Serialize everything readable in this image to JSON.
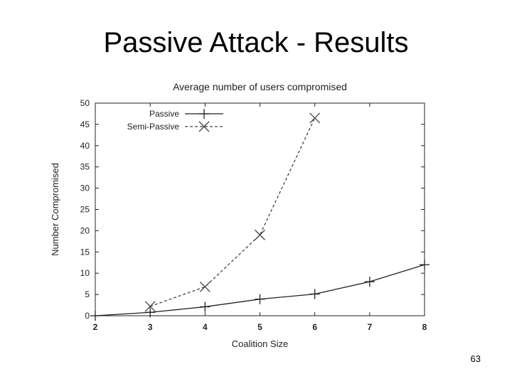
{
  "slide": {
    "title": "Passive Attack - Results",
    "page_number": "63"
  },
  "chart_data": {
    "type": "line",
    "title": "Average number of users compromised",
    "xlabel": "Coalition Size",
    "ylabel": "Number Compromised",
    "xlim": [
      2,
      8
    ],
    "ylim": [
      0,
      50
    ],
    "xticks": [
      2,
      3,
      4,
      5,
      6,
      7,
      8
    ],
    "yticks": [
      0,
      5,
      10,
      15,
      20,
      25,
      30,
      35,
      40,
      45,
      50
    ],
    "grid": false,
    "legend_position": "top-left",
    "series": [
      {
        "name": "Passive",
        "marker": "plus",
        "dash": "solid",
        "color": "#222222",
        "x": [
          2,
          3,
          4,
          5,
          6,
          7,
          8
        ],
        "y": [
          0,
          0.8,
          2.1,
          3.9,
          5.1,
          8.0,
          12.0
        ]
      },
      {
        "name": "Semi-Passive",
        "marker": "cross",
        "dash": "dashed",
        "color": "#444444",
        "x": [
          3,
          4,
          5,
          6
        ],
        "y": [
          2.2,
          6.8,
          19.0,
          46.5
        ]
      }
    ]
  }
}
